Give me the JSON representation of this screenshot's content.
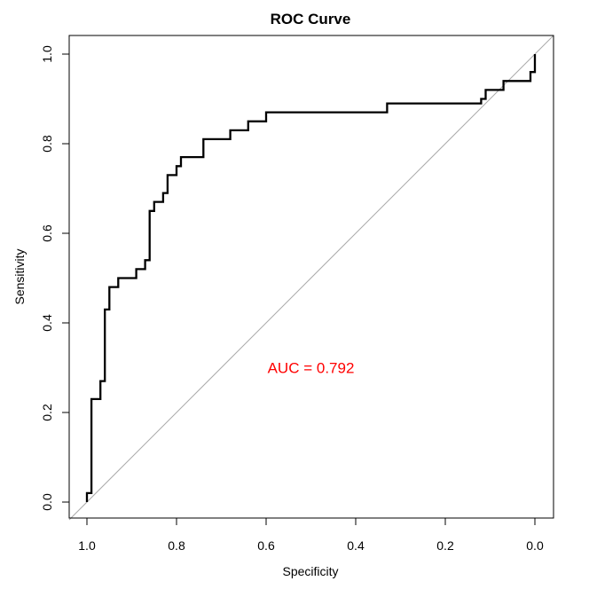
{
  "chart_data": {
    "type": "line",
    "title": "ROC Curve",
    "xlabel": "Specificity",
    "ylabel": "Sensitivity",
    "xlim": [
      1.0,
      0.0
    ],
    "ylim": [
      0.0,
      1.0
    ],
    "x_reversed": true,
    "grid": false,
    "x_ticks": [
      "1.0",
      "0.8",
      "0.6",
      "0.4",
      "0.2",
      "0.0"
    ],
    "y_ticks": [
      "0.0",
      "0.2",
      "0.4",
      "0.6",
      "0.8",
      "1.0"
    ],
    "annotation": {
      "text": "AUC = 0.792",
      "x": 0.5,
      "y": 0.3,
      "color": "#ff0000"
    },
    "reference_line": {
      "from": [
        1.0,
        0.0
      ],
      "to": [
        0.0,
        1.0
      ],
      "color": "#aaaaaa"
    },
    "series": [
      {
        "color": "#000000",
        "points": [
          [
            1.0,
            0.0
          ],
          [
            1.0,
            0.02
          ],
          [
            0.99,
            0.02
          ],
          [
            0.99,
            0.23
          ],
          [
            0.97,
            0.23
          ],
          [
            0.97,
            0.27
          ],
          [
            0.96,
            0.27
          ],
          [
            0.96,
            0.43
          ],
          [
            0.95,
            0.43
          ],
          [
            0.95,
            0.48
          ],
          [
            0.93,
            0.48
          ],
          [
            0.93,
            0.5
          ],
          [
            0.89,
            0.5
          ],
          [
            0.89,
            0.52
          ],
          [
            0.87,
            0.52
          ],
          [
            0.87,
            0.54
          ],
          [
            0.86,
            0.54
          ],
          [
            0.86,
            0.65
          ],
          [
            0.85,
            0.65
          ],
          [
            0.85,
            0.67
          ],
          [
            0.83,
            0.67
          ],
          [
            0.83,
            0.69
          ],
          [
            0.82,
            0.69
          ],
          [
            0.82,
            0.73
          ],
          [
            0.8,
            0.73
          ],
          [
            0.8,
            0.75
          ],
          [
            0.79,
            0.75
          ],
          [
            0.79,
            0.77
          ],
          [
            0.74,
            0.77
          ],
          [
            0.74,
            0.81
          ],
          [
            0.68,
            0.81
          ],
          [
            0.68,
            0.83
          ],
          [
            0.64,
            0.83
          ],
          [
            0.64,
            0.85
          ],
          [
            0.6,
            0.85
          ],
          [
            0.6,
            0.87
          ],
          [
            0.33,
            0.87
          ],
          [
            0.33,
            0.89
          ],
          [
            0.12,
            0.89
          ],
          [
            0.12,
            0.9
          ],
          [
            0.11,
            0.9
          ],
          [
            0.11,
            0.92
          ],
          [
            0.07,
            0.92
          ],
          [
            0.07,
            0.94
          ],
          [
            0.01,
            0.94
          ],
          [
            0.01,
            0.96
          ],
          [
            0.0,
            0.96
          ],
          [
            0.0,
            1.0
          ]
        ]
      }
    ]
  }
}
